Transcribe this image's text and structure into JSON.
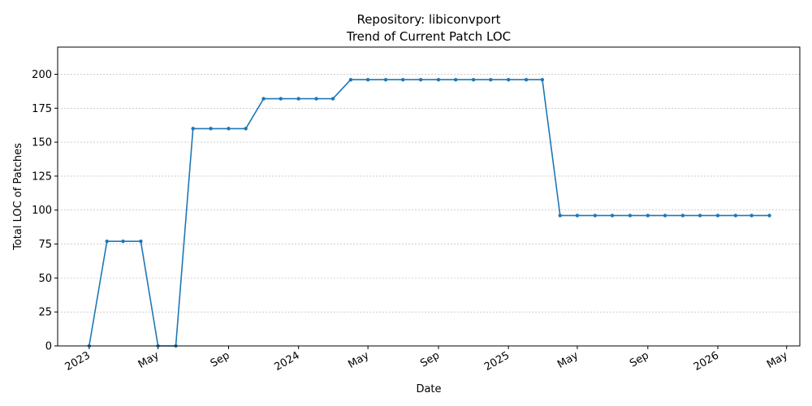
{
  "chart_data": {
    "type": "line",
    "title": "Repository: libiconvport",
    "subtitle": "Trend of Current Patch LOC",
    "xlabel": "Date",
    "ylabel": "Total LOC of Patches",
    "ylim": [
      0,
      220
    ],
    "xlim": [
      "2022-11-07",
      "2026-05-24"
    ],
    "yticks": [
      0,
      25,
      50,
      75,
      100,
      125,
      150,
      175,
      200
    ],
    "xticks": [
      {
        "date": "2023-01-01",
        "label": "2023"
      },
      {
        "date": "2023-05-01",
        "label": "May"
      },
      {
        "date": "2023-09-01",
        "label": "Sep"
      },
      {
        "date": "2024-01-01",
        "label": "2024"
      },
      {
        "date": "2024-05-01",
        "label": "May"
      },
      {
        "date": "2024-09-01",
        "label": "Sep"
      },
      {
        "date": "2025-01-01",
        "label": "2025"
      },
      {
        "date": "2025-05-01",
        "label": "May"
      },
      {
        "date": "2025-09-01",
        "label": "Sep"
      },
      {
        "date": "2026-01-01",
        "label": "2026"
      },
      {
        "date": "2026-05-01",
        "label": "May"
      }
    ],
    "grid": "y",
    "color": "#1f77b4",
    "series": [
      {
        "x": [
          "2023-01-01",
          "2023-02-01",
          "2023-03-01",
          "2023-04-01",
          "2023-05-01",
          "2023-06-01",
          "2023-07-01",
          "2023-08-01",
          "2023-09-01",
          "2023-10-01",
          "2023-11-01",
          "2023-12-01",
          "2024-01-01",
          "2024-02-01",
          "2024-03-01",
          "2024-04-01",
          "2024-05-01",
          "2024-06-01",
          "2024-07-01",
          "2024-08-01",
          "2024-09-01",
          "2024-10-01",
          "2024-11-01",
          "2024-12-01",
          "2025-01-01",
          "2025-02-01",
          "2025-03-01",
          "2025-04-01",
          "2025-05-01",
          "2025-06-01",
          "2025-07-01",
          "2025-08-01",
          "2025-09-01",
          "2025-10-01",
          "2025-11-01",
          "2025-12-01",
          "2026-01-01",
          "2026-02-01",
          "2026-03-01",
          "2026-04-01"
        ],
        "values": [
          0,
          77,
          77,
          77,
          0,
          0,
          160,
          160,
          160,
          160,
          182,
          182,
          182,
          182,
          182,
          196,
          196,
          196,
          196,
          196,
          196,
          196,
          196,
          196,
          196,
          196,
          196,
          96,
          96,
          96,
          96,
          96,
          96,
          96,
          96,
          96,
          96,
          96,
          96,
          96
        ]
      }
    ]
  }
}
